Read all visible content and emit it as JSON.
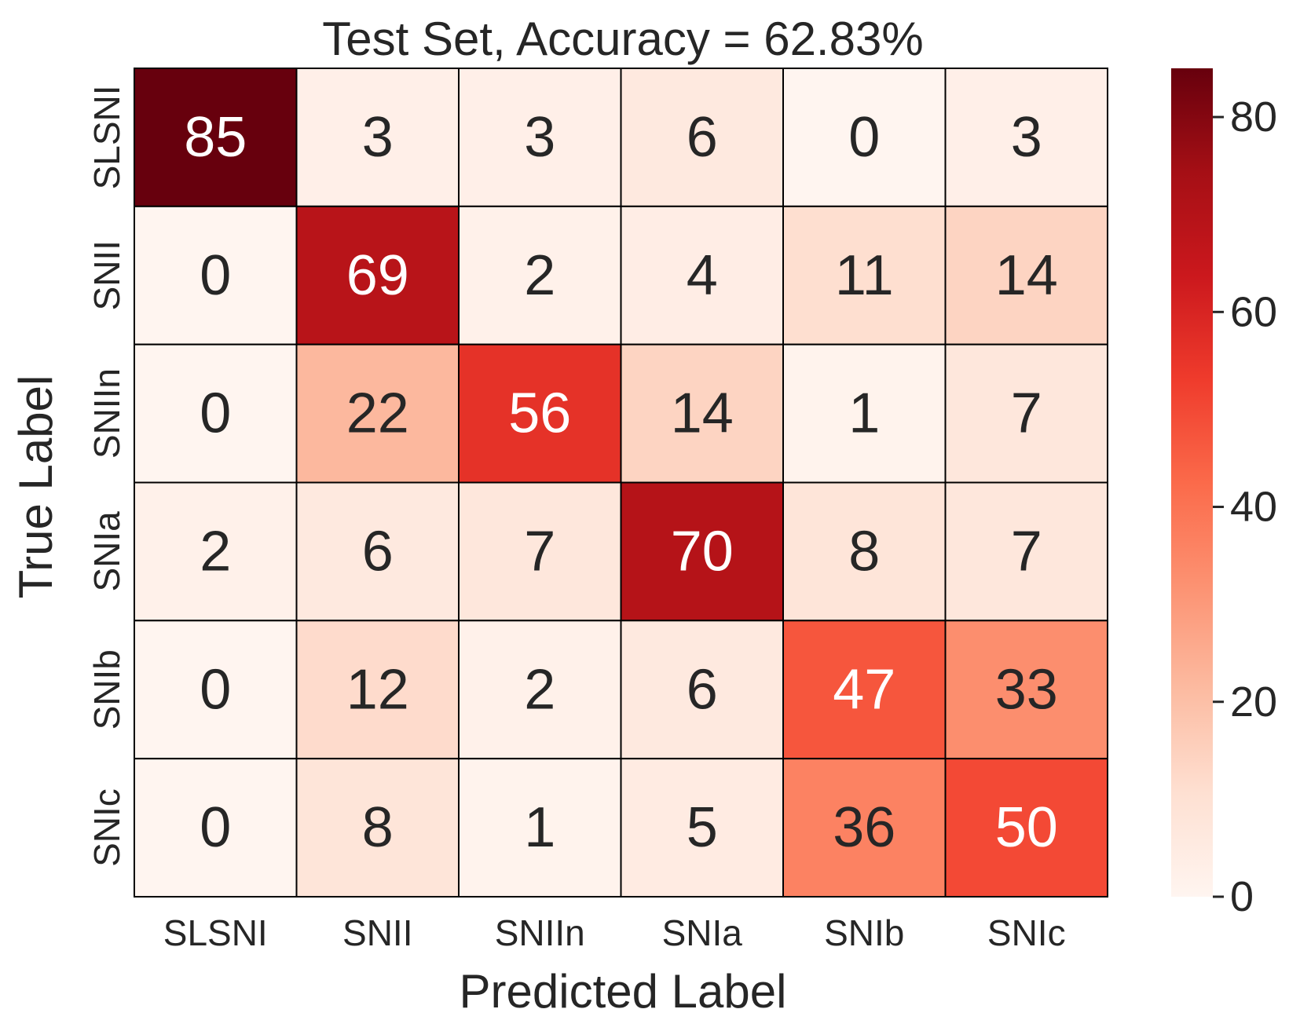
{
  "chart_data": {
    "type": "heatmap",
    "title": "Test Set, Accuracy = 62.83%",
    "xlabel": "Predicted Label",
    "ylabel": "True Label",
    "x_categories": [
      "SLSNI",
      "SNII",
      "SNIIn",
      "SNIa",
      "SNIb",
      "SNIc"
    ],
    "y_categories": [
      "SLSNI",
      "SNII",
      "SNIIn",
      "SNIa",
      "SNIb",
      "SNIc"
    ],
    "values": [
      [
        85,
        3,
        3,
        6,
        0,
        3
      ],
      [
        0,
        69,
        2,
        4,
        11,
        14
      ],
      [
        0,
        22,
        56,
        14,
        1,
        7
      ],
      [
        2,
        6,
        7,
        70,
        8,
        7
      ],
      [
        0,
        12,
        2,
        6,
        47,
        33
      ],
      [
        0,
        8,
        1,
        5,
        36,
        50
      ]
    ],
    "colormap": "Reds",
    "colorbar": {
      "range": [
        0,
        85
      ],
      "ticks": [
        0,
        20,
        40,
        60,
        80
      ]
    }
  }
}
